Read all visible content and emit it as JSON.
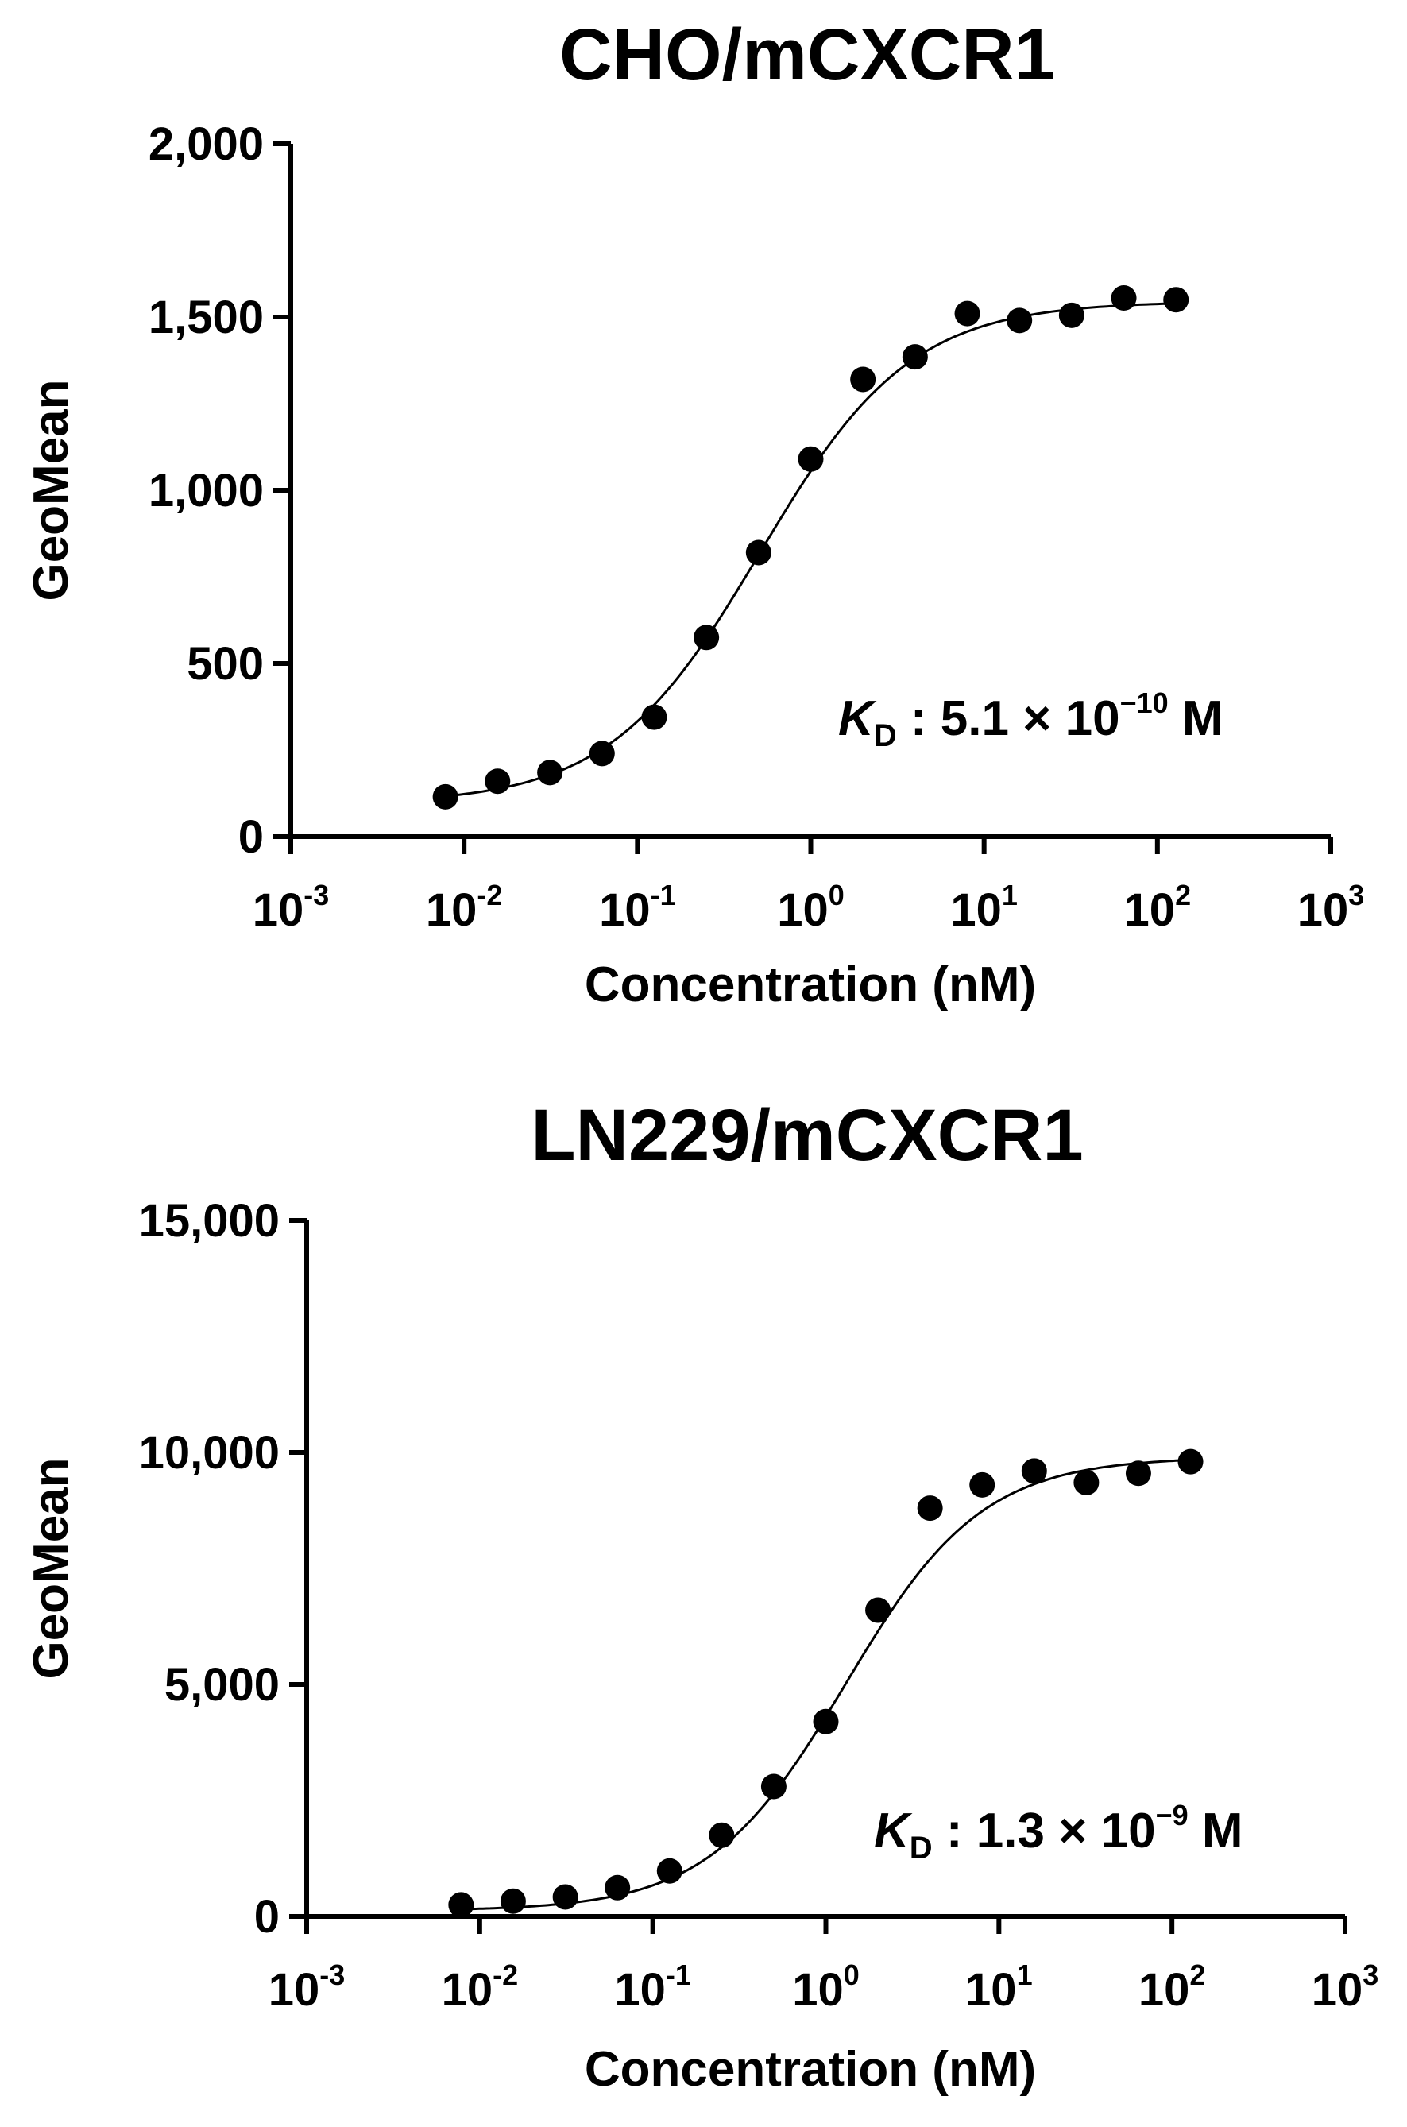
{
  "chart_data": [
    {
      "type": "scatter",
      "title": "CHO/mCXCR1",
      "xlabel": "Concentration (nM)",
      "ylabel": "GeoMean",
      "xscale": "log",
      "xlim": [
        0.001,
        1000
      ],
      "ylim": [
        0,
        2000
      ],
      "xticks": [
        {
          "base": "10",
          "exp": "-3"
        },
        {
          "base": "10",
          "exp": "-2"
        },
        {
          "base": "10",
          "exp": "-1"
        },
        {
          "base": "10",
          "exp": "0"
        },
        {
          "base": "10",
          "exp": "1"
        },
        {
          "base": "10",
          "exp": "2"
        },
        {
          "base": "10",
          "exp": "3"
        }
      ],
      "yticks": [
        0,
        500,
        1000,
        1500,
        2000
      ],
      "ytick_labels": [
        "0",
        "500",
        "1,000",
        "1,500",
        "2,000"
      ],
      "points": {
        "x": [
          0.0078,
          0.0156,
          0.03125,
          0.0625,
          0.125,
          0.25,
          0.5,
          1,
          2,
          4,
          8,
          16,
          32,
          64,
          128
        ],
        "y": [
          115,
          160,
          185,
          240,
          345,
          575,
          820,
          1090,
          1320,
          1385,
          1510,
          1490,
          1505,
          1555,
          1550
        ]
      },
      "fit": {
        "model": "sigmoid",
        "bottom": 95,
        "top": 1545,
        "ec50": 0.51,
        "hill": 1.0
      },
      "annotation": {
        "k": "K",
        "sub": "D",
        "text": " : 5.1 × 10",
        "exp": "−10",
        "unit": " M"
      }
    },
    {
      "type": "scatter",
      "title": "LN229/mCXCR1",
      "xlabel": "Concentration (nM)",
      "ylabel": "GeoMean",
      "xscale": "log",
      "xlim": [
        0.001,
        1000
      ],
      "ylim": [
        0,
        15000
      ],
      "xticks": [
        {
          "base": "10",
          "exp": "-3"
        },
        {
          "base": "10",
          "exp": "-2"
        },
        {
          "base": "10",
          "exp": "-1"
        },
        {
          "base": "10",
          "exp": "0"
        },
        {
          "base": "10",
          "exp": "1"
        },
        {
          "base": "10",
          "exp": "2"
        },
        {
          "base": "10",
          "exp": "3"
        }
      ],
      "yticks": [
        0,
        5000,
        10000,
        15000
      ],
      "ytick_labels": [
        "0",
        "5,000",
        "10,000",
        "15,000"
      ],
      "points": {
        "x": [
          0.0078,
          0.0156,
          0.03125,
          0.0625,
          0.125,
          0.25,
          0.5,
          1,
          2,
          4,
          8,
          16,
          32,
          64,
          128
        ],
        "y": [
          250,
          330,
          420,
          620,
          980,
          1750,
          2800,
          4200,
          6600,
          8800,
          9300,
          9600,
          9350,
          9550,
          9800
        ]
      },
      "fit": {
        "model": "sigmoid",
        "bottom": 120,
        "top": 9900,
        "ec50": 1.3,
        "hill": 1.1
      },
      "annotation": {
        "k": "K",
        "sub": "D",
        "text": " : 1.3 × 10",
        "exp": "−9",
        "unit": " M"
      }
    }
  ]
}
